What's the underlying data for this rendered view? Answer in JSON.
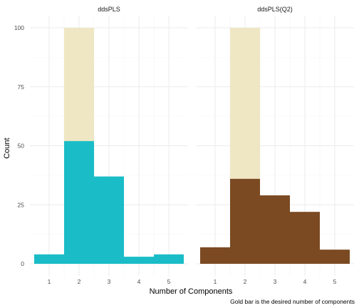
{
  "chart_data": {
    "type": "bar",
    "xlabel": "Number of Components",
    "ylabel": "Count",
    "caption": "Gold bar is the desired number of components",
    "x_ticks": [
      1,
      2,
      3,
      4,
      5
    ],
    "y_ticks": [
      0,
      25,
      50,
      75,
      100
    ],
    "xlim": [
      0.5,
      5.5
    ],
    "ylim": [
      0,
      100
    ],
    "grid": true,
    "panels": [
      {
        "title": "ddsPLS",
        "fill_color": "#1abdc7",
        "highlight": {
          "x": 2,
          "value": 100,
          "color": "#efe6c3"
        },
        "bins": [
          {
            "x": 1,
            "value": 4
          },
          {
            "x": 2,
            "value": 52
          },
          {
            "x": 3,
            "value": 37
          },
          {
            "x": 4,
            "value": 3
          },
          {
            "x": 5,
            "value": 4
          }
        ]
      },
      {
        "title": "ddsPLS(Q2)",
        "fill_color": "#7b4a22",
        "highlight": {
          "x": 2,
          "value": 100,
          "color": "#efe6c3"
        },
        "bins": [
          {
            "x": 1,
            "value": 7
          },
          {
            "x": 2,
            "value": 36
          },
          {
            "x": 3,
            "value": 29
          },
          {
            "x": 4,
            "value": 22
          },
          {
            "x": 5,
            "value": 6
          }
        ]
      }
    ]
  }
}
